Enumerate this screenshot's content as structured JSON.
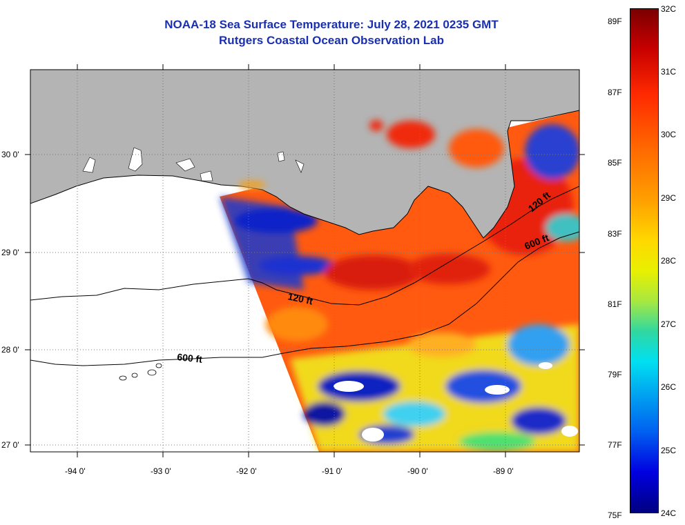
{
  "title_line1": "NOAA-18 Sea Surface Temperature:  July 28, 2021 0235 GMT",
  "title_line2": "Rutgers Coastal Ocean Observation Lab",
  "lat_labels": [
    "30 0'",
    "29 0'",
    "28 0'",
    "27 0'"
  ],
  "lon_labels": [
    "-94 0'",
    "-93 0'",
    "-92 0'",
    "-91 0'",
    "-90 0'",
    "-89 0'"
  ],
  "contours": [
    "120 ft",
    "600 ft",
    "120 ft",
    "600 ft"
  ],
  "colorbar": {
    "fahrenheit": [
      "89F",
      "87F",
      "85F",
      "83F",
      "81F",
      "79F",
      "77F",
      "75F"
    ],
    "celsius": [
      "32C",
      "31C",
      "30C",
      "29C",
      "28C",
      "27C",
      "26C",
      "25C",
      "24C"
    ]
  },
  "colors": {
    "title": "#1a2fb0",
    "land": "#b4b4b4",
    "warm": "#ff3a10",
    "cool": "#0a20c8"
  }
}
